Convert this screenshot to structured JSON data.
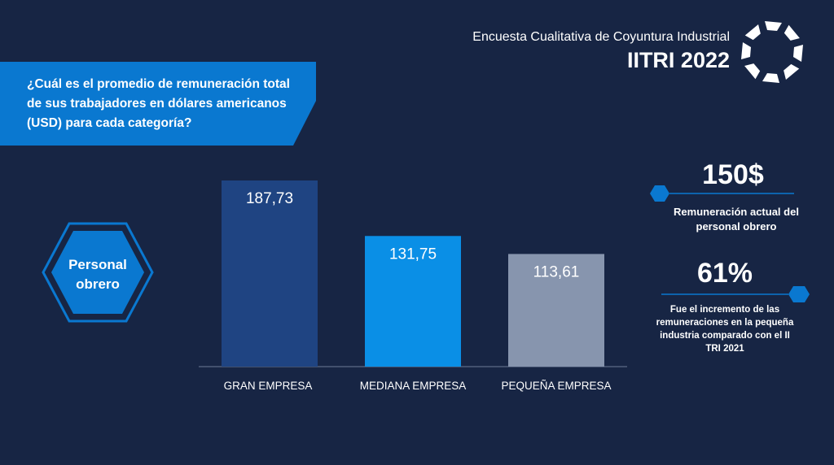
{
  "header": {
    "subtitle": "Encuesta Cualitativa de Coyuntura Industrial",
    "title": "IITRI 2022"
  },
  "question": "¿Cuál es el promedio de remuneración total de sus trabajadores en dólares americanos (USD) para cada categoría?",
  "category_label": "Personal obrero",
  "colors": {
    "background": "#172544",
    "accent": "#0a78d0",
    "bar_gran": "#1f4482",
    "bar_mediana": "#0a8fe6",
    "bar_pequena": "#8795ae"
  },
  "chart_data": {
    "type": "bar",
    "categories": [
      "GRAN EMPRESA",
      "MEDIANA EMPRESA",
      "PEQUEÑA EMPRESA"
    ],
    "values": [
      187.73,
      131.75,
      113.61
    ],
    "value_labels": [
      "187,73",
      "131,75",
      "113,61"
    ],
    "title": "",
    "xlabel": "",
    "ylabel": "",
    "ylim": [
      0,
      200
    ],
    "grid": false
  },
  "stats": [
    {
      "value": "150$",
      "label": "Remuneración actual del personal obrero"
    },
    {
      "value": "61%",
      "label": "Fue el incremento de las remuneraciones en la pequeña industria comparado con el II TRI 2021"
    }
  ]
}
